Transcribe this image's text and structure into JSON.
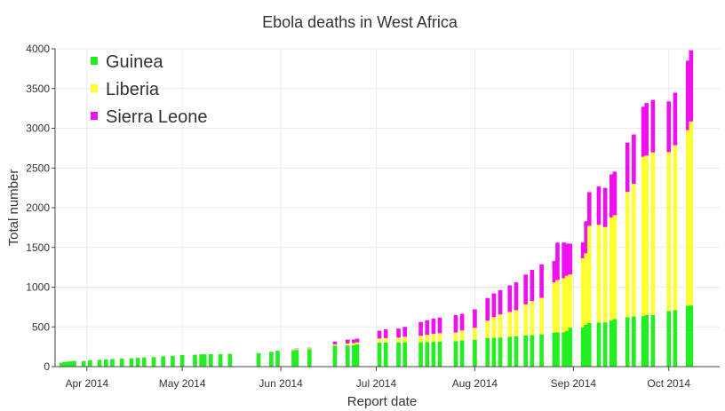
{
  "chart_data": {
    "type": "bar",
    "stacked": true,
    "title": "Ebola deaths in West Africa",
    "xlabel": "Report date",
    "ylabel": "Total number",
    "ylim": [
      0,
      4000
    ],
    "yticks": [
      0,
      500,
      1000,
      1500,
      2000,
      2500,
      3000,
      3500,
      4000
    ],
    "xlim": [
      "2014-03-22",
      "2014-10-17"
    ],
    "xticks": [
      {
        "date": "2014-04-01",
        "label": "Apr 2014"
      },
      {
        "date": "2014-05-01",
        "label": "May 2014"
      },
      {
        "date": "2014-06-01",
        "label": "Jun 2014"
      },
      {
        "date": "2014-07-01",
        "label": "Jul 2014"
      },
      {
        "date": "2014-08-01",
        "label": "Aug 2014"
      },
      {
        "date": "2014-09-01",
        "label": "Sep 2014"
      },
      {
        "date": "2014-10-01",
        "label": "Oct 2014"
      }
    ],
    "legend_position": "top-left",
    "series": [
      {
        "name": "Guinea",
        "color": "#22ee22"
      },
      {
        "name": "Liberia",
        "color": "#ffff33"
      },
      {
        "name": "Sierra Leone",
        "color": "#ee11ee"
      }
    ],
    "dates": [
      "2014-03-24",
      "2014-03-25",
      "2014-03-26",
      "2014-03-27",
      "2014-03-28",
      "2014-03-31",
      "2014-04-02",
      "2014-04-05",
      "2014-04-07",
      "2014-04-09",
      "2014-04-12",
      "2014-04-15",
      "2014-04-17",
      "2014-04-19",
      "2014-04-22",
      "2014-04-25",
      "2014-04-28",
      "2014-05-01",
      "2014-05-05",
      "2014-05-07",
      "2014-05-08",
      "2014-05-10",
      "2014-05-13",
      "2014-05-16",
      "2014-05-25",
      "2014-05-29",
      "2014-05-31",
      "2014-06-05",
      "2014-06-06",
      "2014-06-10",
      "2014-06-18",
      "2014-06-22",
      "2014-06-24",
      "2014-06-25",
      "2014-07-02",
      "2014-07-04",
      "2014-07-08",
      "2014-07-10",
      "2014-07-15",
      "2014-07-17",
      "2014-07-19",
      "2014-07-21",
      "2014-07-26",
      "2014-07-28",
      "2014-08-01",
      "2014-08-05",
      "2014-08-07",
      "2014-08-09",
      "2014-08-12",
      "2014-08-14",
      "2014-08-17",
      "2014-08-19",
      "2014-08-22",
      "2014-08-26",
      "2014-08-27",
      "2014-08-29",
      "2014-08-30",
      "2014-08-31",
      "2014-09-04",
      "2014-09-05",
      "2014-09-06",
      "2014-09-09",
      "2014-09-11",
      "2014-09-13",
      "2014-09-14",
      "2014-09-18",
      "2014-09-20",
      "2014-09-23",
      "2014-09-24",
      "2014-09-26",
      "2014-10-01",
      "2014-10-03",
      "2014-10-07",
      "2014-10-08"
    ],
    "values": {
      "Guinea": [
        49,
        60,
        62,
        66,
        70,
        70,
        80,
        85,
        90,
        95,
        100,
        106,
        110,
        115,
        120,
        130,
        136,
        146,
        150,
        155,
        155,
        157,
        157,
        160,
        170,
        185,
        200,
        200,
        210,
        220,
        264,
        267,
        270,
        280,
        303,
        304,
        305,
        306,
        308,
        310,
        312,
        315,
        319,
        330,
        339,
        358,
        363,
        367,
        377,
        380,
        394,
        396,
        406,
        429,
        430,
        432,
        450,
        490,
        494,
        525,
        548,
        555,
        557,
        580,
        601,
        622,
        632,
        635,
        648,
        650,
        700,
        710,
        766,
        770
      ],
      "Liberia": [
        0,
        0,
        0,
        0,
        0,
        0,
        0,
        0,
        0,
        0,
        0,
        0,
        0,
        0,
        0,
        0,
        0,
        0,
        0,
        0,
        0,
        0,
        0,
        0,
        0,
        0,
        0,
        10,
        12,
        12,
        16,
        24,
        25,
        25,
        50,
        55,
        60,
        70,
        80,
        90,
        100,
        105,
        110,
        125,
        150,
        220,
        260,
        290,
        310,
        330,
        390,
        430,
        460,
        630,
        660,
        680,
        694,
        670,
        870,
        900,
        1224,
        1230,
        1200,
        1296,
        1306,
        1578,
        1670,
        2006,
        2009,
        2046,
        2000,
        2076,
        2210,
        2316
      ],
      "Sierra Leone": [
        0,
        0,
        0,
        0,
        0,
        0,
        0,
        0,
        0,
        0,
        0,
        0,
        0,
        0,
        0,
        0,
        0,
        0,
        0,
        0,
        0,
        0,
        0,
        0,
        0,
        0,
        0,
        5,
        6,
        6,
        34,
        49,
        46,
        46,
        99,
        109,
        114,
        124,
        174,
        184,
        194,
        198,
        219,
        209,
        232,
        286,
        298,
        306,
        336,
        350,
        374,
        392,
        422,
        270,
        470,
        450,
        404,
        388,
        198,
        405,
        424,
        482,
        493,
        544,
        547,
        620,
        620,
        630,
        660,
        661,
        637,
        661,
        875,
        896
      ]
    }
  }
}
